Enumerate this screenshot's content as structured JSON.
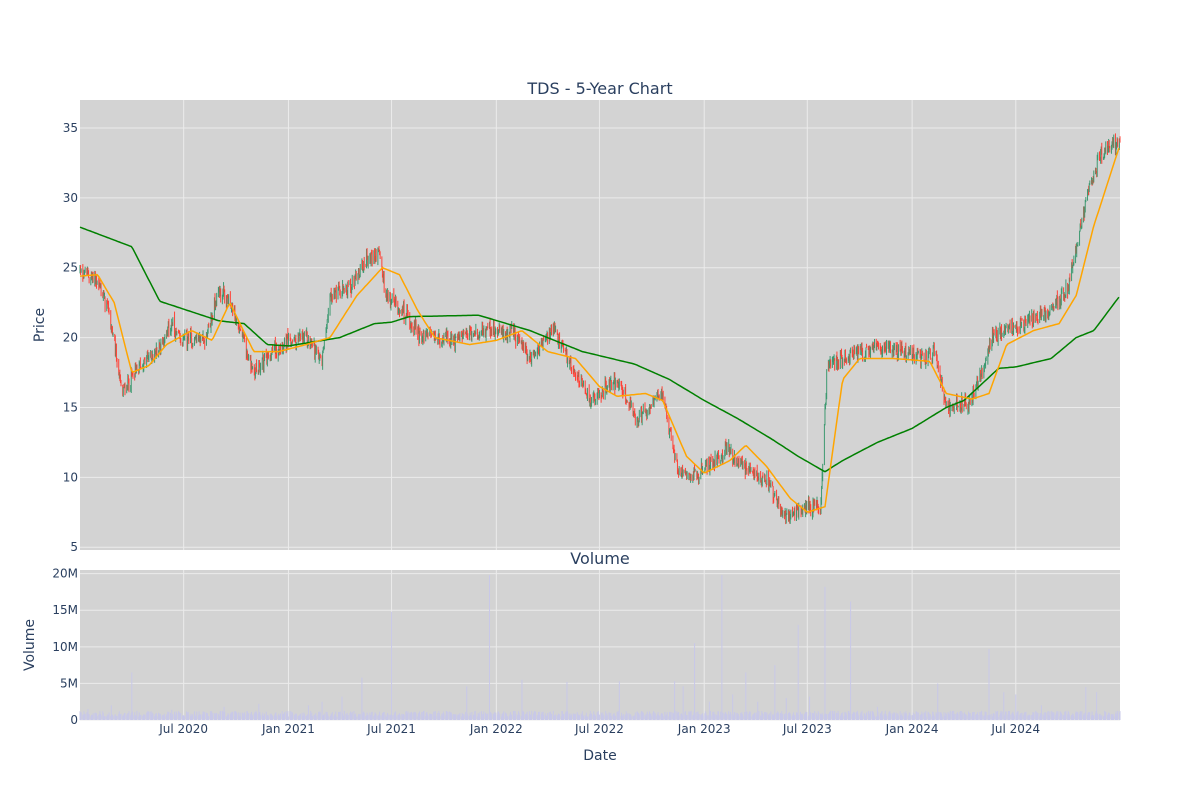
{
  "chart_data": [
    {
      "type": "candlestick",
      "title": "TDS - 5-Year Chart",
      "xlabel": "",
      "ylabel": "Price",
      "ylim": [
        4.8,
        37
      ],
      "yticks": [
        5,
        10,
        15,
        20,
        25,
        30,
        35
      ],
      "xlim": [
        "2020-01-01",
        "2024-12-31"
      ],
      "grid": true,
      "legend": "none",
      "colors": {
        "plot_bg": "#d3d3d3",
        "grid": "#ebebeb",
        "increasing": "#3d9970",
        "decreasing": "#ff4136",
        "ma_short": "#ffa500",
        "ma_long": "#008000"
      },
      "close_series": [
        [
          "2020-01-01",
          24.8
        ],
        [
          "2020-02-01",
          24.0
        ],
        [
          "2020-02-20",
          22.0
        ],
        [
          "2020-03-15",
          16.0
        ],
        [
          "2020-04-15",
          18.0
        ],
        [
          "2020-05-15",
          19.0
        ],
        [
          "2020-06-10",
          21.0
        ],
        [
          "2020-06-20",
          19.8
        ],
        [
          "2020-08-10",
          20.0
        ],
        [
          "2020-09-01",
          23.5
        ],
        [
          "2020-09-25",
          22.0
        ],
        [
          "2020-11-01",
          17.5
        ],
        [
          "2020-12-15",
          19.5
        ],
        [
          "2021-02-01",
          20.0
        ],
        [
          "2021-03-01",
          18.5
        ],
        [
          "2021-03-15",
          23.0
        ],
        [
          "2021-04-20",
          23.5
        ],
        [
          "2021-05-15",
          25.5
        ],
        [
          "2021-06-10",
          26.0
        ],
        [
          "2021-06-20",
          23.0
        ],
        [
          "2021-07-20",
          22.0
        ],
        [
          "2021-08-20",
          20.2
        ],
        [
          "2021-10-15",
          19.8
        ],
        [
          "2021-12-15",
          20.5
        ],
        [
          "2022-02-01",
          20.3
        ],
        [
          "2022-03-01",
          18.5
        ],
        [
          "2022-04-10",
          20.5
        ],
        [
          "2022-05-20",
          17.5
        ],
        [
          "2022-06-15",
          15.5
        ],
        [
          "2022-08-01",
          17.0
        ],
        [
          "2022-09-05",
          14.0
        ],
        [
          "2022-10-20",
          16.0
        ],
        [
          "2022-11-15",
          10.5
        ],
        [
          "2022-12-25",
          10.3
        ],
        [
          "2023-02-10",
          12.0
        ],
        [
          "2023-03-15",
          10.5
        ],
        [
          "2023-04-20",
          10.0
        ],
        [
          "2023-05-20",
          7.2
        ],
        [
          "2023-06-15",
          7.5
        ],
        [
          "2023-07-25",
          8.2
        ],
        [
          "2023-08-05",
          18.0
        ],
        [
          "2023-09-10",
          18.5
        ],
        [
          "2023-10-15",
          19.0
        ],
        [
          "2023-11-15",
          19.5
        ],
        [
          "2024-01-15",
          18.5
        ],
        [
          "2024-02-10",
          19.0
        ],
        [
          "2024-03-01",
          15.0
        ],
        [
          "2024-04-15",
          15.5
        ],
        [
          "2024-05-20",
          20.0
        ],
        [
          "2024-07-15",
          21.0
        ],
        [
          "2024-09-01",
          22.0
        ],
        [
          "2024-10-01",
          23.5
        ],
        [
          "2024-11-01",
          30.0
        ],
        [
          "2024-11-25",
          33.0
        ],
        [
          "2024-12-31",
          34.2
        ]
      ],
      "ma_long": [
        [
          "2020-01-01",
          27.9
        ],
        [
          "2020-04-01",
          26.5
        ],
        [
          "2020-05-20",
          22.6
        ],
        [
          "2020-09-01",
          21.2
        ],
        [
          "2020-10-15",
          21.0
        ],
        [
          "2020-11-25",
          19.5
        ],
        [
          "2021-01-01",
          19.4
        ],
        [
          "2021-04-01",
          20.0
        ],
        [
          "2021-06-01",
          21.0
        ],
        [
          "2021-07-01",
          21.1
        ],
        [
          "2021-08-01",
          21.5
        ],
        [
          "2021-12-01",
          21.6
        ],
        [
          "2022-03-01",
          20.5
        ],
        [
          "2022-06-01",
          19.0
        ],
        [
          "2022-09-01",
          18.1
        ],
        [
          "2022-11-01",
          17.0
        ],
        [
          "2023-01-01",
          15.5
        ],
        [
          "2023-03-01",
          14.2
        ],
        [
          "2023-05-01",
          12.7
        ],
        [
          "2023-06-15",
          11.5
        ],
        [
          "2023-08-01",
          10.4
        ],
        [
          "2023-09-01",
          11.2
        ],
        [
          "2023-11-01",
          12.5
        ],
        [
          "2024-01-01",
          13.5
        ],
        [
          "2024-03-01",
          15.0
        ],
        [
          "2024-04-01",
          15.5
        ],
        [
          "2024-06-01",
          17.8
        ],
        [
          "2024-07-01",
          17.9
        ],
        [
          "2024-09-01",
          18.5
        ],
        [
          "2024-10-15",
          20.0
        ],
        [
          "2024-11-15",
          20.5
        ],
        [
          "2024-12-31",
          23.0
        ]
      ],
      "ma_short": [
        [
          "2020-01-01",
          24.4
        ],
        [
          "2020-02-01",
          24.5
        ],
        [
          "2020-03-01",
          22.5
        ],
        [
          "2020-04-01",
          17.5
        ],
        [
          "2020-05-01",
          18.0
        ],
        [
          "2020-06-01",
          19.5
        ],
        [
          "2020-07-15",
          20.5
        ],
        [
          "2020-08-20",
          19.8
        ],
        [
          "2020-09-20",
          22.5
        ],
        [
          "2020-11-01",
          19.0
        ],
        [
          "2020-12-15",
          19.0
        ],
        [
          "2021-02-01",
          19.5
        ],
        [
          "2021-03-15",
          20.0
        ],
        [
          "2021-05-01",
          23.0
        ],
        [
          "2021-06-15",
          25.0
        ],
        [
          "2021-07-15",
          24.5
        ],
        [
          "2021-08-15",
          22.0
        ],
        [
          "2021-09-15",
          20.0
        ],
        [
          "2021-11-15",
          19.5
        ],
        [
          "2022-01-01",
          19.8
        ],
        [
          "2022-02-15",
          20.5
        ],
        [
          "2022-04-01",
          19.0
        ],
        [
          "2022-05-20",
          18.5
        ],
        [
          "2022-07-01",
          16.5
        ],
        [
          "2022-08-01",
          15.8
        ],
        [
          "2022-09-20",
          16.0
        ],
        [
          "2022-10-20",
          15.5
        ],
        [
          "2022-12-01",
          11.5
        ],
        [
          "2023-01-01",
          10.3
        ],
        [
          "2023-02-15",
          11.2
        ],
        [
          "2023-03-15",
          12.3
        ],
        [
          "2023-04-20",
          10.8
        ],
        [
          "2023-06-01",
          8.5
        ],
        [
          "2023-07-01",
          7.5
        ],
        [
          "2023-08-01",
          7.9
        ],
        [
          "2023-09-01",
          17.0
        ],
        [
          "2023-10-01",
          18.5
        ],
        [
          "2023-12-01",
          18.5
        ],
        [
          "2024-02-01",
          18.3
        ],
        [
          "2024-03-01",
          16.0
        ],
        [
          "2024-04-15",
          15.6
        ],
        [
          "2024-05-15",
          16.0
        ],
        [
          "2024-06-15",
          19.5
        ],
        [
          "2024-08-01",
          20.5
        ],
        [
          "2024-09-15",
          21.0
        ],
        [
          "2024-10-15",
          23.0
        ],
        [
          "2024-11-15",
          28.0
        ],
        [
          "2024-12-31",
          33.8
        ]
      ]
    },
    {
      "type": "bar",
      "title": "Volume",
      "xlabel": "Date",
      "ylabel": "Volume",
      "ylim": [
        0,
        20500000
      ],
      "yticks": [
        0,
        5000000,
        10000000,
        15000000,
        20000000
      ],
      "ytick_labels": [
        "0",
        "5M",
        "10M",
        "15M",
        "20M"
      ],
      "xticks": [
        "2020-07-01",
        "2021-01-01",
        "2021-07-01",
        "2022-01-01",
        "2022-07-01",
        "2023-01-01",
        "2023-07-01",
        "2024-01-01",
        "2024-07-01"
      ],
      "xtick_labels": [
        "Jul 2020",
        "Jan 2021",
        "Jul 2021",
        "Jan 2022",
        "Jul 2022",
        "Jan 2023",
        "Jul 2023",
        "Jan 2024",
        "Jul 2024"
      ],
      "color": "#c8c8e8",
      "base_level": 900000,
      "spikes": [
        [
          "2020-01-15",
          1500000
        ],
        [
          "2020-02-10",
          1200000
        ],
        [
          "2020-02-25",
          2000000
        ],
        [
          "2020-03-15",
          1800000
        ],
        [
          "2020-04-01",
          6500000
        ],
        [
          "2020-05-05",
          1200000
        ],
        [
          "2020-06-10",
          1400000
        ],
        [
          "2020-08-15",
          1600000
        ],
        [
          "2020-09-10",
          1800000
        ],
        [
          "2020-11-10",
          2200000
        ],
        [
          "2020-12-20",
          1500000
        ],
        [
          "2021-02-05",
          2000000
        ],
        [
          "2021-03-01",
          2500000
        ],
        [
          "2021-03-20",
          3000000
        ],
        [
          "2021-04-05",
          3200000
        ],
        [
          "2021-05-10",
          5800000
        ],
        [
          "2021-06-20",
          3800000
        ],
        [
          "2021-07-01",
          14800000
        ],
        [
          "2021-08-15",
          2600000
        ],
        [
          "2021-11-10",
          4600000
        ],
        [
          "2021-12-20",
          19800000
        ],
        [
          "2022-02-15",
          5500000
        ],
        [
          "2022-05-05",
          5200000
        ],
        [
          "2022-08-05",
          5300000
        ],
        [
          "2022-11-10",
          5300000
        ],
        [
          "2022-11-25",
          4600000
        ],
        [
          "2022-12-15",
          10500000
        ],
        [
          "2023-01-10",
          2500000
        ],
        [
          "2023-02-01",
          19800000
        ],
        [
          "2023-02-20",
          3500000
        ],
        [
          "2023-03-15",
          6500000
        ],
        [
          "2023-04-05",
          2500000
        ],
        [
          "2023-05-05",
          7500000
        ],
        [
          "2023-05-25",
          3000000
        ],
        [
          "2023-06-15",
          13000000
        ],
        [
          "2023-07-05",
          3200000
        ],
        [
          "2023-08-01",
          18200000
        ],
        [
          "2023-08-20",
          3000000
        ],
        [
          "2023-09-15",
          16200000
        ],
        [
          "2023-11-01",
          1800000
        ],
        [
          "2024-02-15",
          5000000
        ],
        [
          "2024-03-10",
          1500000
        ],
        [
          "2024-05-15",
          9700000
        ],
        [
          "2024-06-10",
          3800000
        ],
        [
          "2024-07-01",
          3500000
        ],
        [
          "2024-08-15",
          2000000
        ],
        [
          "2024-11-01",
          4500000
        ],
        [
          "2024-11-20",
          3800000
        ],
        [
          "2024-12-15",
          2000000
        ]
      ]
    }
  ]
}
